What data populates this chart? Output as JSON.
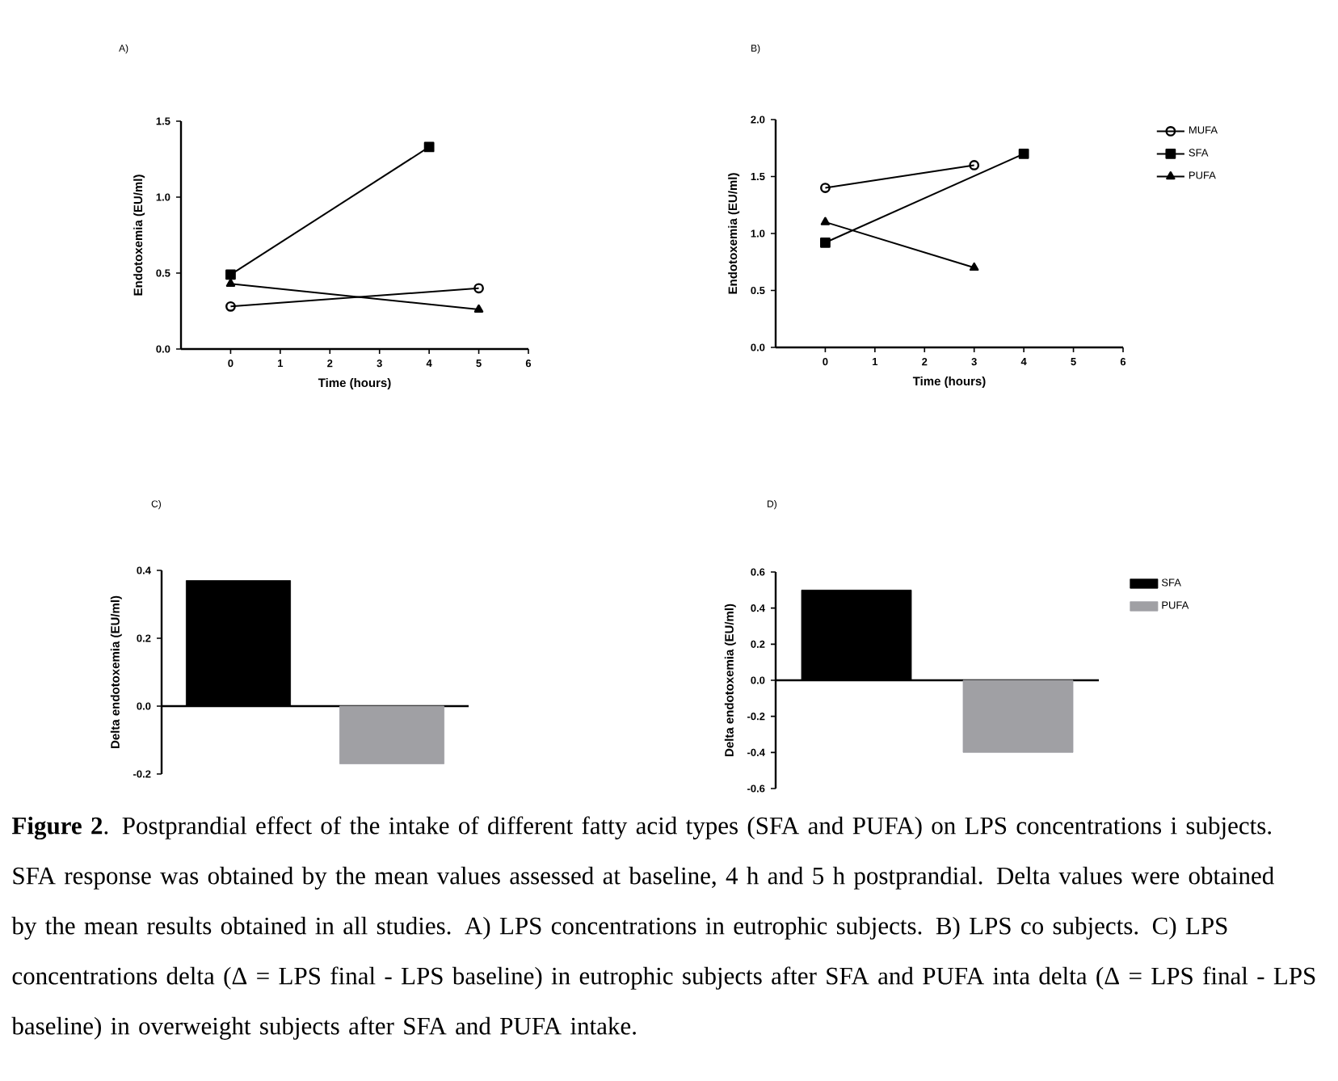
{
  "chart_data": [
    {
      "type": "line",
      "title": "A)",
      "xlabel": "Time (hours)",
      "ylabel": "Endotoxemia (EU/ml)",
      "x": [
        0,
        4,
        5
      ],
      "xlim": [
        -1,
        6
      ],
      "xticks": [
        0,
        1,
        2,
        3,
        4,
        5,
        6
      ],
      "ylim": [
        0,
        1.5
      ],
      "yticks": [
        {
          "value": 0,
          "label": "0.0"
        },
        0.5,
        {
          "value": 1,
          "label": "1.0"
        },
        1.5
      ],
      "series": [
        {
          "color": "#000000",
          "marker": "circle",
          "values": [
            0.28,
            null,
            0.4
          ]
        },
        {
          "color": "#000000",
          "marker": "square",
          "values": [
            0.49,
            1.33,
            null
          ]
        },
        {
          "color": "#000000",
          "marker": "triangle",
          "values": [
            0.43,
            null,
            0.26
          ]
        }
      ]
    },
    {
      "type": "line",
      "title": "B)",
      "xlabel": "Time (hours)",
      "ylabel": "Endotoxemia (EU/ml)",
      "x": [
        0,
        3,
        4
      ],
      "xlim": [
        -1,
        6
      ],
      "xticks": [
        0,
        1,
        2,
        3,
        4,
        5,
        6
      ],
      "ylim": [
        0,
        2
      ],
      "yticks": [
        {
          "value": 0,
          "label": "0.0"
        },
        0.5,
        {
          "value": 1,
          "label": "1.0"
        },
        1.5,
        {
          "value": 2,
          "label": "2.0"
        }
      ],
      "legend": "right",
      "series": [
        {
          "name": "MUFA",
          "color": "#000000",
          "marker": "circle",
          "values": [
            1.4,
            1.6,
            null
          ]
        },
        {
          "name": "SFA",
          "color": "#000000",
          "marker": "square",
          "values": [
            0.92,
            null,
            1.7
          ]
        },
        {
          "name": "PUFA",
          "color": "#000000",
          "marker": "triangle",
          "values": [
            1.1,
            0.7,
            null
          ]
        }
      ]
    },
    {
      "type": "bar",
      "title": "C)",
      "ylabel": "Delta endotoxemia (EU/ml)",
      "categories": [
        null,
        null
      ],
      "ylim": [
        -0.2,
        0.4
      ],
      "yticks": [
        -0.2,
        {
          "value": 0,
          "label": "0.0"
        },
        0.2,
        0.4
      ],
      "series": [
        {
          "color": "#000000",
          "values": [
            0.37,
            null
          ]
        },
        {
          "color": "#a0a0a4",
          "values": [
            null,
            -0.17
          ]
        }
      ]
    },
    {
      "type": "bar",
      "title": "D)",
      "ylabel": "Delta endotoxemia (EU/ml)",
      "categories": [
        null,
        null
      ],
      "ylim": [
        -0.6,
        0.6
      ],
      "yticks": [
        -0.6,
        -0.4,
        -0.2,
        {
          "value": 0,
          "label": "0.0"
        },
        0.2,
        0.4,
        0.6
      ],
      "legend": "right",
      "series": [
        {
          "name": "SFA",
          "color": "#000000",
          "values": [
            0.5,
            null
          ]
        },
        {
          "name": "PUFA",
          "color": "#a0a0a4",
          "values": [
            null,
            -0.4
          ]
        }
      ],
      "annotations": [
        "**Figure 2**. Postprandial effect of the intake of different fatty acid types  (SFA and PUFA) on LPS concentrations i subjects. SFA response was obtained by the mean values assessed at baseline, 4 h and 5 h postprandial. Delta values were obtained by the mean results obtained in all studies. A) LPS concentrations in eutrophic subjects. B) LPS co subjects. C) LPS concentrations delta (Δ = LPS final - LPS baseline) in eutrophic subjects after SFA and PUFA inta delta (Δ = LPS final - LPS baseline) in overweight subjects after SFA and PUFA intake."
      ]
    }
  ]
}
